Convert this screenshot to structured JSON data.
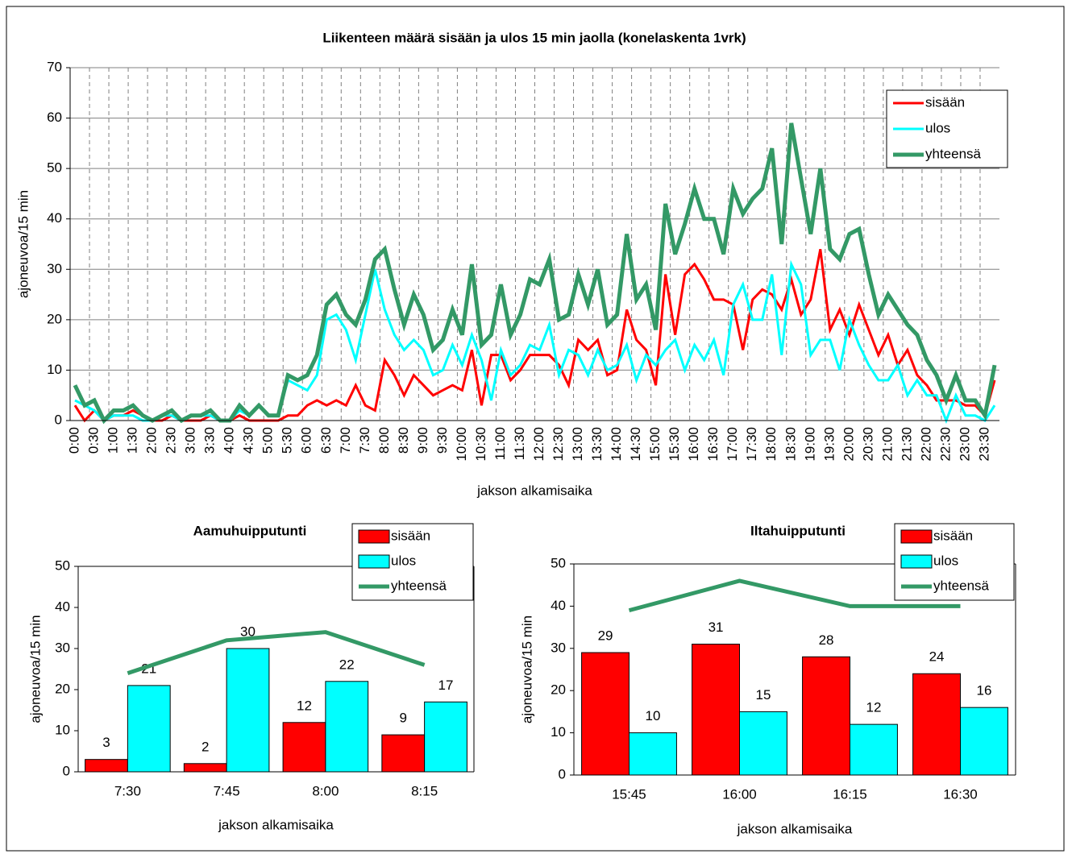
{
  "chart_data": [
    {
      "type": "line",
      "title": "Liikenteen määrä sisään ja ulos 15 min jaolla (konelaskenta 1vrk)",
      "x_label": "jakson alkamisaika",
      "y_label": "ajoneuvoa/15 min",
      "categories": [
        "0:00",
        null,
        "0:30",
        null,
        "1:00",
        null,
        "1:30",
        null,
        "2:00",
        null,
        "2:30",
        null,
        "3:00",
        null,
        "3:30",
        null,
        "4:00",
        null,
        "4:30",
        null,
        "5:00",
        null,
        "5:30",
        null,
        "6:00",
        null,
        "6:30",
        null,
        "7:00",
        null,
        "7:30",
        null,
        "8:00",
        null,
        "8:30",
        null,
        "9:00",
        null,
        "9:30",
        null,
        "10:00",
        null,
        "10:30",
        null,
        "11:00",
        null,
        "11:30",
        null,
        "12:00",
        null,
        "12:30",
        null,
        "13:00",
        null,
        "13:30",
        null,
        "14:00",
        null,
        "14:30",
        null,
        "15:00",
        null,
        "15:30",
        null,
        "16:00",
        null,
        "16:30",
        null,
        "17:00",
        null,
        "17:30",
        null,
        "18:00",
        null,
        "18:30",
        null,
        "19:00",
        null,
        "19:30",
        null,
        "20:00",
        null,
        "20:30",
        null,
        "21:00",
        null,
        "21:30",
        null,
        "22:00",
        null,
        "22:30",
        null,
        "23:00",
        null,
        "23:30",
        null
      ],
      "series": [
        {
          "name": "sisään",
          "color": "#ff0000",
          "values": [
            3,
            0,
            2,
            0,
            1,
            1,
            2,
            1,
            0,
            0,
            1,
            0,
            0,
            0,
            1,
            0,
            0,
            1,
            0,
            0,
            0,
            0,
            1,
            1,
            3,
            4,
            3,
            4,
            3,
            7,
            3,
            2,
            12,
            9,
            5,
            9,
            7,
            5,
            6,
            7,
            6,
            14,
            3,
            13,
            13,
            8,
            10,
            13,
            13,
            13,
            11,
            7,
            16,
            14,
            16,
            9,
            10,
            22,
            16,
            14,
            7,
            29,
            17,
            29,
            31,
            28,
            24,
            24,
            23,
            14,
            24,
            26,
            25,
            22,
            28,
            21,
            24,
            34,
            18,
            22,
            17,
            23,
            18,
            13,
            17,
            11,
            14,
            9,
            7,
            4,
            4,
            4,
            3,
            3,
            1,
            8
          ]
        },
        {
          "name": "ulos",
          "color": "#00ffff",
          "values": [
            4,
            3,
            2,
            0,
            1,
            1,
            1,
            0,
            0,
            1,
            1,
            0,
            1,
            1,
            1,
            0,
            0,
            2,
            1,
            3,
            1,
            1,
            8,
            7,
            6,
            9,
            20,
            21,
            18,
            12,
            21,
            30,
            22,
            17,
            14,
            16,
            14,
            9,
            10,
            15,
            11,
            17,
            12,
            4,
            14,
            9,
            11,
            15,
            14,
            19,
            9,
            14,
            13,
            9,
            14,
            10,
            11,
            15,
            8,
            13,
            11,
            14,
            16,
            10,
            15,
            12,
            16,
            9,
            23,
            27,
            20,
            20,
            29,
            13,
            31,
            27,
            13,
            16,
            16,
            10,
            20,
            15,
            11,
            8,
            8,
            11,
            5,
            8,
            5,
            5,
            0,
            5,
            1,
            1,
            0,
            3
          ]
        },
        {
          "name": "yhteensä",
          "color": "#339966",
          "values": [
            7,
            3,
            4,
            0,
            2,
            2,
            3,
            1,
            0,
            1,
            2,
            0,
            1,
            1,
            2,
            0,
            0,
            3,
            1,
            3,
            1,
            1,
            9,
            8,
            9,
            13,
            23,
            25,
            21,
            19,
            24,
            32,
            34,
            26,
            19,
            25,
            21,
            14,
            16,
            22,
            17,
            31,
            15,
            17,
            27,
            17,
            21,
            28,
            27,
            32,
            20,
            21,
            29,
            23,
            30,
            19,
            21,
            37,
            24,
            27,
            18,
            43,
            33,
            39,
            46,
            40,
            40,
            33,
            46,
            41,
            44,
            46,
            54,
            35,
            59,
            48,
            37,
            50,
            34,
            32,
            37,
            38,
            29,
            21,
            25,
            22,
            19,
            17,
            12,
            9,
            4,
            9,
            4,
            4,
            1,
            11
          ]
        }
      ],
      "ylim": [
        0,
        70
      ],
      "yticks": [
        0,
        10,
        20,
        30,
        40,
        50,
        60,
        70
      ],
      "grid": true,
      "legend": "top-right"
    },
    {
      "type": "bar",
      "title": "Aamuhuipputunti",
      "x_label": "jakson alkamisaika",
      "y_label": "ajoneuvoa/15 min",
      "categories": [
        "7:30",
        "7:45",
        "8:00",
        "8:15"
      ],
      "series": [
        {
          "name": "sisään",
          "color": "#ff0000",
          "values": [
            3,
            2,
            12,
            9
          ]
        },
        {
          "name": "ulos",
          "color": "#00ffff",
          "values": [
            21,
            30,
            22,
            17
          ]
        },
        {
          "name": "yhteensä",
          "color": "#339966",
          "type": "line",
          "values": [
            24,
            32,
            34,
            26
          ]
        }
      ],
      "ylim": [
        0,
        50
      ],
      "yticks": [
        0,
        10,
        20,
        30,
        40,
        50
      ],
      "grid": false,
      "legend": "top-right"
    },
    {
      "type": "bar",
      "title": "Iltahuipputunti",
      "x_label": "jakson alkamisaika",
      "y_label": "ajoneuvoa/15 min",
      "categories": [
        "15:45",
        "16:00",
        "16:15",
        "16:30"
      ],
      "series": [
        {
          "name": "sisään",
          "color": "#ff0000",
          "values": [
            29,
            31,
            28,
            24
          ]
        },
        {
          "name": "ulos",
          "color": "#00ffff",
          "values": [
            10,
            15,
            12,
            16
          ]
        },
        {
          "name": "yhteensä",
          "color": "#339966",
          "type": "line",
          "values": [
            39,
            46,
            40,
            40
          ]
        }
      ],
      "ylim": [
        0,
        50
      ],
      "yticks": [
        0,
        10,
        20,
        30,
        40,
        50
      ],
      "grid": false,
      "legend": "top-right"
    }
  ]
}
